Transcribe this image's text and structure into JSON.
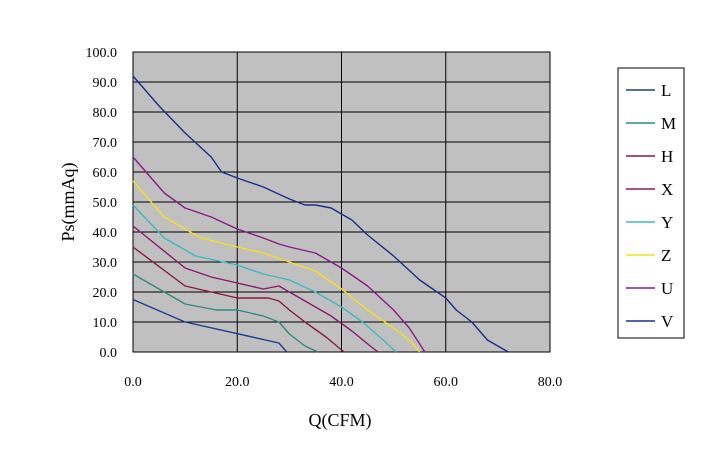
{
  "chart_data": {
    "type": "line",
    "xlabel": "Q(CFM)",
    "ylabel": "Ps(mmAq)",
    "xlim": [
      0,
      80
    ],
    "ylim": [
      0,
      100
    ],
    "xticks": [
      "0.0",
      "20.0",
      "40.0",
      "60.0",
      "80.0"
    ],
    "yticks": [
      "0.0",
      "10.0",
      "20.0",
      "30.0",
      "40.0",
      "50.0",
      "60.0",
      "70.0",
      "80.0",
      "90.0",
      "100.0"
    ],
    "grid": true,
    "plot_background": "#c0c0c0",
    "legend_position": "right",
    "series": [
      {
        "name": "L",
        "color": "#1f3b8f",
        "x": [
          0,
          10,
          28,
          29.5
        ],
        "y": [
          17.5,
          10,
          3,
          0
        ]
      },
      {
        "name": "M",
        "color": "#2e8b7e",
        "x": [
          0,
          10,
          16,
          20,
          25,
          28,
          30,
          33,
          35.5
        ],
        "y": [
          26,
          16,
          14,
          14,
          12,
          10,
          6,
          2,
          0
        ]
      },
      {
        "name": "H",
        "color": "#8b1a3a",
        "x": [
          0,
          10,
          15,
          20,
          24,
          26,
          28,
          30,
          33,
          37,
          40.5
        ],
        "y": [
          35,
          22,
          20,
          18,
          18,
          18,
          17,
          14,
          10,
          5,
          0
        ]
      },
      {
        "name": "X",
        "color": "#8b1a6b",
        "x": [
          0,
          10,
          15,
          20,
          25,
          28,
          32,
          38,
          42,
          45.5,
          47
        ],
        "y": [
          42,
          28,
          25,
          23,
          21,
          22,
          18,
          12,
          7,
          2,
          0
        ]
      },
      {
        "name": "Y",
        "color": "#40b8c0",
        "x": [
          0,
          6,
          12,
          20,
          25,
          30,
          35,
          40,
          44,
          48,
          50.5
        ],
        "y": [
          49,
          38,
          32,
          29,
          26,
          24,
          20,
          15,
          10,
          4,
          0
        ]
      },
      {
        "name": "Z",
        "color": "#f5e11e",
        "x": [
          0,
          6,
          13,
          20,
          25,
          30,
          35,
          40,
          45,
          50,
          53,
          55
        ],
        "y": [
          57,
          45,
          38,
          35,
          33,
          30,
          27,
          21,
          14,
          8,
          4,
          0
        ]
      },
      {
        "name": "U",
        "color": "#8b1a8b",
        "x": [
          0,
          6,
          10,
          15,
          20,
          25,
          28,
          30,
          35,
          40,
          45,
          50,
          53,
          56
        ],
        "y": [
          65,
          53,
          48,
          45,
          41,
          38,
          36,
          35,
          33,
          28,
          22,
          14,
          8,
          0
        ]
      },
      {
        "name": "V",
        "color": "#1f2c8f",
        "x": [
          0,
          5,
          10,
          15,
          17,
          20,
          25,
          30,
          33,
          35,
          38,
          42,
          45,
          50,
          55,
          60,
          62,
          65,
          68,
          72
        ],
        "y": [
          92,
          82,
          73,
          65,
          60,
          58,
          55,
          51,
          49,
          49,
          48,
          44,
          39,
          32,
          24,
          18,
          14,
          10,
          4,
          0
        ]
      }
    ]
  }
}
